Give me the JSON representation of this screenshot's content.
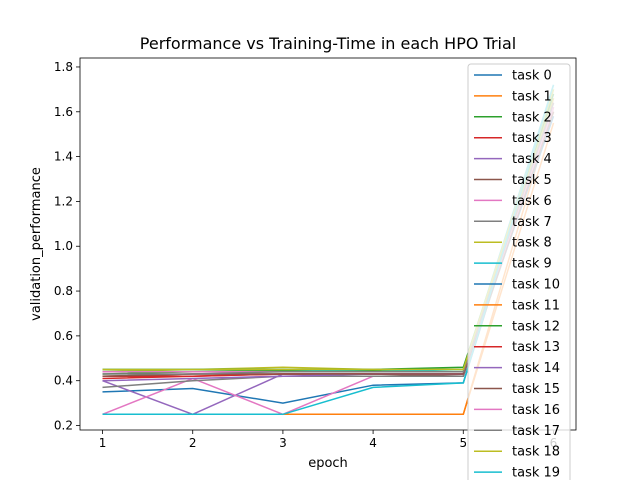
{
  "chart_data": {
    "type": "line",
    "title": "Performance vs Training-Time in each HPO Trial",
    "xlabel": "epoch",
    "ylabel": "validation_performance",
    "x": [
      1,
      2,
      3,
      4,
      5,
      6
    ],
    "xticks": [
      "1",
      "2",
      "3",
      "4",
      "5",
      "6"
    ],
    "yticks": [
      "0.2",
      "0.4",
      "0.6",
      "0.8",
      "1.0",
      "1.2",
      "1.4",
      "1.6",
      "1.8"
    ],
    "xlim": [
      0.75,
      6.25
    ],
    "ylim": [
      0.18,
      1.84
    ],
    "grid": false,
    "legend_position": "right",
    "series": [
      {
        "name": "task 0",
        "color": "#1f77b4",
        "values": [
          0.35,
          0.365,
          0.3,
          0.38,
          0.39,
          1.68
        ]
      },
      {
        "name": "task 1",
        "color": "#ff7f0e",
        "values": [
          0.25,
          0.25,
          0.25,
          0.25,
          0.25,
          1.62
        ]
      },
      {
        "name": "task 2",
        "color": "#2ca02c",
        "values": [
          0.43,
          0.44,
          0.445,
          0.445,
          0.45,
          1.7
        ]
      },
      {
        "name": "task 3",
        "color": "#d62728",
        "values": [
          0.41,
          0.42,
          0.43,
          0.43,
          0.43,
          1.66
        ]
      },
      {
        "name": "task 4",
        "color": "#9467bd",
        "values": [
          0.4,
          0.25,
          0.43,
          0.43,
          0.43,
          1.64
        ]
      },
      {
        "name": "task 5",
        "color": "#8c564b",
        "values": [
          0.42,
          0.43,
          0.43,
          0.43,
          0.42,
          1.6
        ]
      },
      {
        "name": "task 6",
        "color": "#e377c2",
        "values": [
          0.25,
          0.41,
          0.25,
          0.42,
          0.42,
          1.62
        ]
      },
      {
        "name": "task 7",
        "color": "#7f7f7f",
        "values": [
          0.37,
          0.4,
          0.42,
          0.42,
          0.42,
          1.6
        ]
      },
      {
        "name": "task 8",
        "color": "#bcbd22",
        "values": [
          0.44,
          0.45,
          0.46,
          0.45,
          0.45,
          1.66
        ]
      },
      {
        "name": "task 9",
        "color": "#17becf",
        "values": [
          0.45,
          0.45,
          0.45,
          0.44,
          0.45,
          1.72
        ]
      },
      {
        "name": "task 10",
        "color": "#1f77b4",
        "values": [
          0.44,
          0.44,
          0.44,
          0.44,
          0.44,
          1.58
        ]
      },
      {
        "name": "task 11",
        "color": "#ff7f0e",
        "values": [
          0.25,
          0.25,
          0.25,
          0.25,
          0.25,
          1.55
        ]
      },
      {
        "name": "task 12",
        "color": "#2ca02c",
        "values": [
          0.45,
          0.45,
          0.45,
          0.45,
          0.46,
          1.68
        ]
      },
      {
        "name": "task 13",
        "color": "#d62728",
        "values": [
          0.42,
          0.42,
          0.43,
          0.43,
          0.43,
          1.64
        ]
      },
      {
        "name": "task 14",
        "color": "#9467bd",
        "values": [
          0.4,
          0.41,
          0.42,
          0.43,
          0.43,
          1.62
        ]
      },
      {
        "name": "task 15",
        "color": "#8c564b",
        "values": [
          0.42,
          0.43,
          0.43,
          0.43,
          0.43,
          1.6
        ]
      },
      {
        "name": "task 16",
        "color": "#e377c2",
        "values": [
          0.44,
          0.44,
          0.44,
          0.44,
          0.44,
          1.62
        ]
      },
      {
        "name": "task 17",
        "color": "#7f7f7f",
        "values": [
          0.43,
          0.43,
          0.44,
          0.44,
          0.44,
          1.64
        ]
      },
      {
        "name": "task 18",
        "color": "#bcbd22",
        "values": [
          0.45,
          0.45,
          0.45,
          0.45,
          0.45,
          1.7
        ]
      },
      {
        "name": "task 19",
        "color": "#17becf",
        "values": [
          0.25,
          0.25,
          0.25,
          0.37,
          0.39,
          1.72
        ]
      }
    ]
  }
}
